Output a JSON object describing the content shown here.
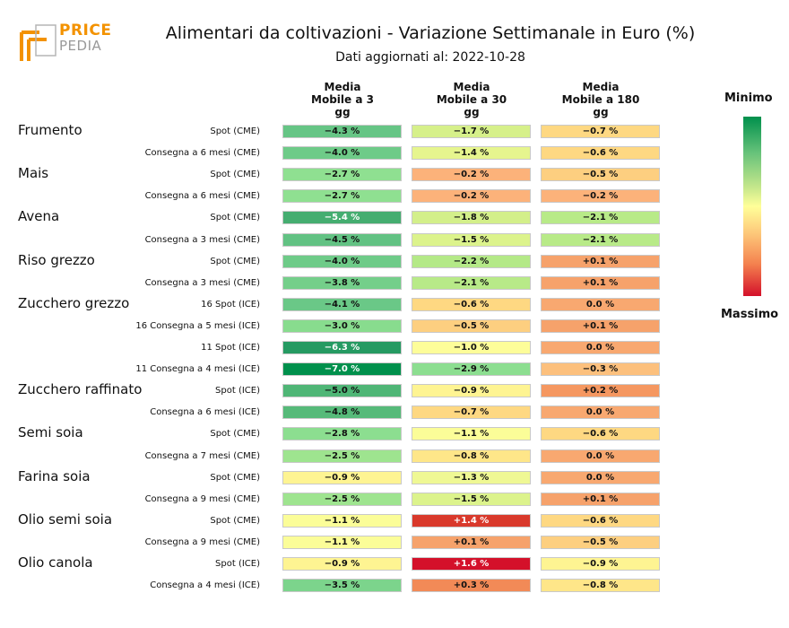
{
  "header": {
    "logo_line1": "PRICE",
    "logo_line2": "PEDIA",
    "title": "Alimentari da coltivazioni - Variazione Settimanale in Euro (%)",
    "subtitle": "Dati aggiornati al: 2022-10-28"
  },
  "columns": [
    {
      "line1": "Media",
      "line2": "Mobile a 3",
      "line3": "gg"
    },
    {
      "line1": "Media",
      "line2": "Mobile a 30",
      "line3": "gg"
    },
    {
      "line1": "Media",
      "line2": "Mobile a 180",
      "line3": "gg"
    }
  ],
  "legend": {
    "min_label": "Minimo",
    "max_label": "Massimo"
  },
  "chart_data": {
    "type": "heatmap",
    "title": "Alimentari da coltivazioni - Variazione Settimanale in Euro (%)",
    "columns": [
      "Media Mobile a 3 gg",
      "Media Mobile a 30 gg",
      "Media Mobile a 180 gg"
    ],
    "rows": [
      {
        "commodity": "Frumento",
        "label": "Spot (CME)",
        "values": [
          "−4.3 %",
          "−1.7 %",
          "−0.7 %"
        ],
        "colors": [
          "#66c585",
          "#d6f08a",
          "#fed882"
        ]
      },
      {
        "commodity": "",
        "label": "Consegna a 6 mesi (CME)",
        "values": [
          "−4.0 %",
          "−1.4 %",
          "−0.6 %"
        ],
        "colors": [
          "#6ecb88",
          "#e6f58e",
          "#fed882"
        ]
      },
      {
        "commodity": "Mais",
        "label": "Spot (CME)",
        "values": [
          "−2.7 %",
          "−0.2 %",
          "−0.5 %"
        ],
        "colors": [
          "#8fe091",
          "#fcb27a",
          "#fdcf80"
        ]
      },
      {
        "commodity": "",
        "label": "Consegna a 6 mesi (CME)",
        "values": [
          "−2.7 %",
          "−0.2 %",
          "−0.2 %"
        ],
        "colors": [
          "#8fe091",
          "#fcb27a",
          "#fcb27a"
        ]
      },
      {
        "commodity": "Avena",
        "label": "Spot (CME)",
        "values": [
          "−5.4 %",
          "−1.8 %",
          "−2.1 %"
        ],
        "colors": [
          "#45ad70",
          "#d3ef8a",
          "#b8ea88"
        ]
      },
      {
        "commodity": "",
        "label": "Consegna a 3 mesi (CME)",
        "values": [
          "−4.5 %",
          "−1.5 %",
          "−2.1 %"
        ],
        "colors": [
          "#62c283",
          "#dcf38c",
          "#b8ea88"
        ]
      },
      {
        "commodity": "Riso grezzo",
        "label": "Spot (CME)",
        "values": [
          "−4.0 %",
          "−2.2 %",
          "+0.1 %"
        ],
        "colors": [
          "#6ecb88",
          "#b4e987",
          "#f6a26b"
        ]
      },
      {
        "commodity": "",
        "label": "Consegna a 3 mesi (CME)",
        "values": [
          "−3.8 %",
          "−2.1 %",
          "+0.1 %"
        ],
        "colors": [
          "#74cf8a",
          "#b8ea88",
          "#f6a26b"
        ]
      },
      {
        "commodity": "Zucchero grezzo",
        "label": "16 Spot (ICE)",
        "values": [
          "−4.1 %",
          "−0.6 %",
          "0.0 %"
        ],
        "colors": [
          "#6ac887",
          "#fed882",
          "#f8a870"
        ]
      },
      {
        "commodity": "",
        "label": "16 Consegna a 5 mesi (ICE)",
        "values": [
          "−3.0 %",
          "−0.5 %",
          "+0.1 %"
        ],
        "colors": [
          "#88dc8e",
          "#fdcf80",
          "#f6a26b"
        ]
      },
      {
        "commodity": "",
        "label": "11 Spot (ICE)",
        "values": [
          "−6.3 %",
          "−1.0 %",
          "0.0 %"
        ],
        "colors": [
          "#259a62",
          "#fdfd99",
          "#f8a870"
        ]
      },
      {
        "commodity": "",
        "label": "11 Consegna a 4 mesi (ICE)",
        "values": [
          "−7.0 %",
          "−2.9 %",
          "−0.3 %"
        ],
        "colors": [
          "#00904c",
          "#8cde90",
          "#fcc07d"
        ]
      },
      {
        "commodity": "Zucchero raffinato",
        "label": "Spot (ICE)",
        "values": [
          "−5.0 %",
          "−0.9 %",
          "+0.2 %"
        ],
        "colors": [
          "#4fb676",
          "#fef492",
          "#f59760"
        ]
      },
      {
        "commodity": "",
        "label": "Consegna a 6 mesi (ICE)",
        "values": [
          "−4.8 %",
          "−0.7 %",
          "0.0 %"
        ],
        "colors": [
          "#56ba79",
          "#fed882",
          "#f8a870"
        ]
      },
      {
        "commodity": "Semi soia",
        "label": "Spot (CME)",
        "values": [
          "−2.8 %",
          "−1.1 %",
          "−0.6 %"
        ],
        "colors": [
          "#8cde90",
          "#fbfd98",
          "#fed882"
        ]
      },
      {
        "commodity": "",
        "label": "Consegna a 7 mesi (CME)",
        "values": [
          "−2.5 %",
          "−0.8 %",
          "0.0 %"
        ],
        "colors": [
          "#9ee48f",
          "#fee689",
          "#f8a870"
        ]
      },
      {
        "commodity": "Farina soia",
        "label": "Spot (CME)",
        "values": [
          "−0.9 %",
          "−1.3 %",
          "0.0 %"
        ],
        "colors": [
          "#fef492",
          "#eff894",
          "#f8a870"
        ]
      },
      {
        "commodity": "",
        "label": "Consegna a 9 mesi (CME)",
        "values": [
          "−2.5 %",
          "−1.5 %",
          "+0.1 %"
        ],
        "colors": [
          "#9ee48f",
          "#dcf38c",
          "#f6a26b"
        ]
      },
      {
        "commodity": "Olio semi soia",
        "label": "Spot (CME)",
        "values": [
          "−1.1 %",
          "+1.4 %",
          "−0.6 %"
        ],
        "colors": [
          "#fbfd98",
          "#d9392b",
          "#fed882"
        ]
      },
      {
        "commodity": "",
        "label": "Consegna a 9 mesi (CME)",
        "values": [
          "−1.1 %",
          "+0.1 %",
          "−0.5 %"
        ],
        "colors": [
          "#fbfd98",
          "#f6a26b",
          "#fdcf80"
        ]
      },
      {
        "commodity": "Olio canola",
        "label": "Spot (ICE)",
        "values": [
          "−0.9 %",
          "+1.6 %",
          "−0.9 %"
        ],
        "colors": [
          "#fef492",
          "#d4102a",
          "#fef492"
        ]
      },
      {
        "commodity": "",
        "label": "Consegna a 4 mesi (ICE)",
        "values": [
          "−3.5 %",
          "+0.3 %",
          "−0.8 %"
        ],
        "colors": [
          "#7cd48c",
          "#f28a57",
          "#fee689"
        ]
      }
    ]
  }
}
